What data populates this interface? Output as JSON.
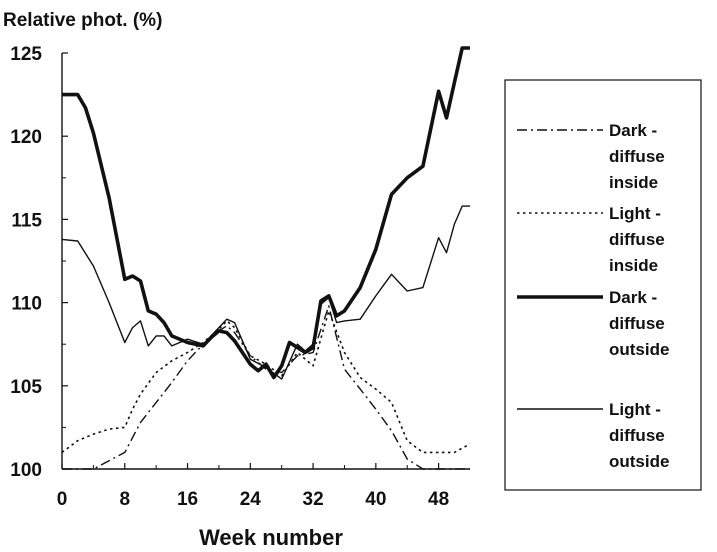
{
  "chart_data": {
    "type": "line",
    "title": "",
    "ylabel": "Relative phot. (%)",
    "xlabel": "Week number",
    "xlim": [
      0,
      52
    ],
    "ylim": [
      100,
      125
    ],
    "xticks": [
      0,
      8,
      16,
      24,
      32,
      40,
      48
    ],
    "yticks": [
      100,
      105,
      110,
      115,
      120,
      125
    ],
    "grid": false,
    "legend_position": "right",
    "series": [
      {
        "name": "Dark - diffuse inside",
        "legend_lines": [
          "Dark -",
          "diffuse",
          "inside"
        ],
        "style": "dashdot",
        "x": [
          0,
          4,
          6,
          8,
          10,
          12,
          14,
          16,
          18,
          20,
          21,
          22,
          24,
          26,
          28,
          30,
          32,
          34,
          36,
          38,
          40,
          42,
          44,
          46,
          48,
          50,
          52
        ],
        "y": [
          100,
          100,
          100.5,
          101,
          102.8,
          104,
          105.2,
          106.5,
          107.5,
          108.3,
          108.6,
          108.2,
          106.8,
          106,
          105.8,
          106.8,
          107,
          109.8,
          106,
          104.8,
          103.6,
          102.3,
          100.6,
          100,
          100,
          100,
          100
        ]
      },
      {
        "name": "Light - diffuse inside",
        "legend_lines": [
          "Light -",
          "diffuse",
          "inside"
        ],
        "style": "dotted",
        "x": [
          0,
          2,
          4,
          6,
          8,
          9,
          10,
          12,
          14,
          16,
          18,
          20,
          21,
          22,
          24,
          26,
          28,
          30,
          32,
          34,
          36,
          38,
          40,
          42,
          44,
          46,
          48,
          50,
          52
        ],
        "y": [
          101,
          101.7,
          102.1,
          102.4,
          102.5,
          103.6,
          104.5,
          105.8,
          106.5,
          107,
          107.6,
          108.4,
          108.9,
          108.5,
          106.8,
          106.3,
          105.6,
          107,
          106.2,
          109.5,
          107,
          105.5,
          104.8,
          104,
          101.7,
          101,
          101,
          101,
          101.5
        ]
      },
      {
        "name": "Dark - diffuse outside",
        "legend_lines": [
          "Dark -",
          "diffuse",
          "outside"
        ],
        "style": "thick",
        "x": [
          0,
          2,
          3,
          4,
          6,
          8,
          9,
          10,
          11,
          12,
          13,
          14,
          16,
          18,
          19,
          20,
          21,
          22,
          24,
          25,
          26,
          27,
          28,
          29,
          30,
          31,
          32,
          33,
          34,
          35,
          36,
          38,
          40,
          42,
          44,
          46,
          48,
          49,
          50,
          51,
          52
        ],
        "y": [
          122.5,
          122.5,
          121.7,
          120.2,
          116.3,
          111.4,
          111.6,
          111.3,
          109.5,
          109.3,
          108.8,
          108,
          107.6,
          107.4,
          107.9,
          108.3,
          108.2,
          107.7,
          106.3,
          105.9,
          106.3,
          105.5,
          106.2,
          107.6,
          107.3,
          107,
          107.3,
          110.1,
          110.4,
          109.2,
          109.5,
          110.9,
          113.2,
          116.5,
          117.5,
          118.2,
          122.7,
          121.1,
          123.2,
          125.3,
          125.3
        ]
      },
      {
        "name": "Light - diffuse outside",
        "legend_lines": [
          "Light -",
          "diffuse",
          "outside"
        ],
        "style": "thin",
        "x": [
          0,
          2,
          4,
          6,
          8,
          9,
          10,
          11,
          12,
          13,
          14,
          16,
          18,
          20,
          21,
          22,
          24,
          26,
          28,
          30,
          31,
          32,
          33,
          34,
          35,
          36,
          38,
          40,
          42,
          44,
          46,
          48,
          49,
          50,
          51,
          52
        ],
        "y": [
          113.8,
          113.7,
          112.2,
          110,
          107.6,
          108.5,
          108.9,
          107.4,
          108,
          108,
          107.4,
          107.8,
          107.5,
          108.5,
          109,
          108.8,
          106.6,
          106.1,
          105.4,
          107.5,
          107.1,
          107.5,
          109.9,
          110.3,
          108.8,
          108.9,
          109,
          110.4,
          111.7,
          110.7,
          110.9,
          113.9,
          113,
          114.7,
          115.8,
          115.8
        ]
      }
    ]
  }
}
